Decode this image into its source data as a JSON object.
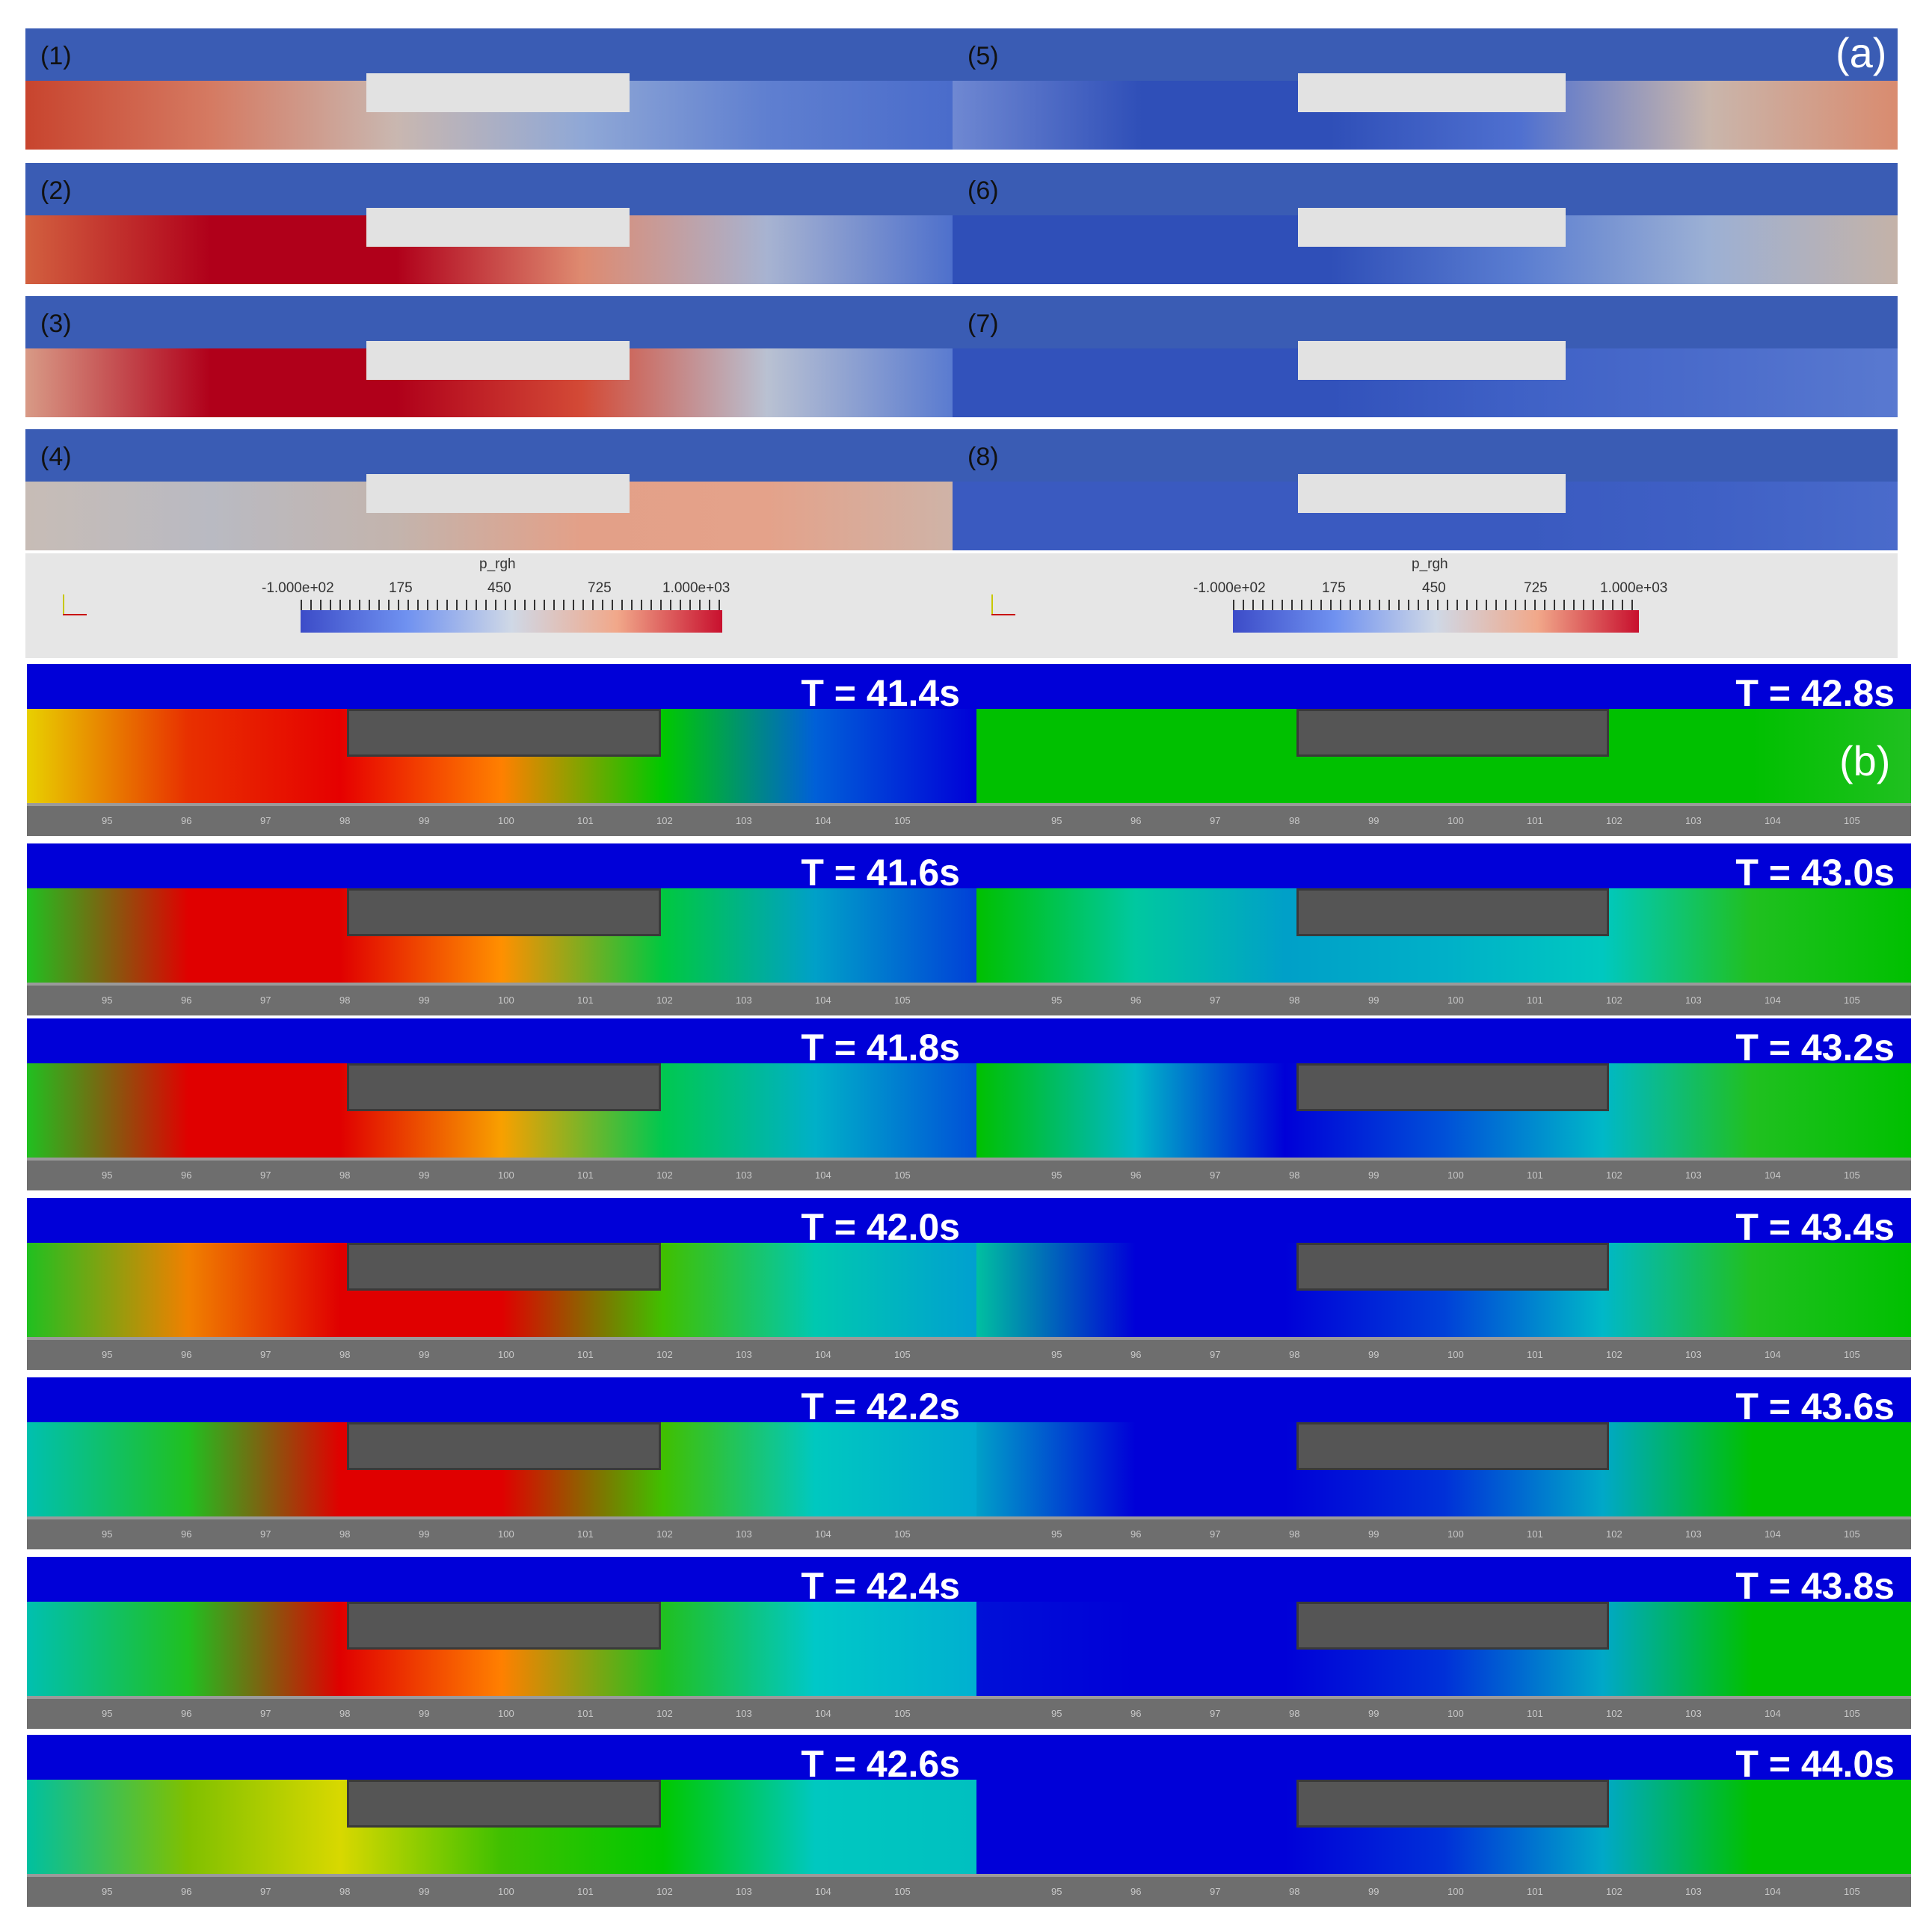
{
  "figure": {
    "part_a_tag": "(a)",
    "part_b_tag": "(b)"
  },
  "part_a": {
    "panels": [
      {
        "label": "(1)",
        "colors": [
          "#c8442e",
          "#d57a62",
          "#c9b7b0",
          "#90a8d6",
          "#5f7fd0",
          "#4a6ccb"
        ]
      },
      {
        "label": "(2)",
        "colors": [
          "#d2603f",
          "#b0001a",
          "#b0001a",
          "#de8a70",
          "#a7b3d1",
          "#4e70cc"
        ]
      },
      {
        "label": "(3)",
        "colors": [
          "#d89a86",
          "#b0001a",
          "#b0001a",
          "#d34a36",
          "#b9c1d2",
          "#5a7bd0"
        ]
      },
      {
        "label": "(4)",
        "colors": [
          "#c7bcb6",
          "#b9bac2",
          "#c3b4ad",
          "#e3a088",
          "#e4a28a",
          "#cfb3a7"
        ]
      },
      {
        "label": "(5)",
        "colors": [
          "#6f88d2",
          "#2f4fb8",
          "#2f4fb8",
          "#4f70d0",
          "#c9b6ac",
          "#d98b6f"
        ]
      },
      {
        "label": "(6)",
        "colors": [
          "#2f4fb8",
          "#2f4fb8",
          "#2f4fb8",
          "#5a7dd1",
          "#9cb0d4",
          "#c4b2a8"
        ]
      },
      {
        "label": "(7)",
        "colors": [
          "#3252bb",
          "#3252bb",
          "#3252bb",
          "#3f61c6",
          "#4b6ccb",
          "#5979d0"
        ]
      },
      {
        "label": "(8)",
        "colors": [
          "#3a5ac0",
          "#3a5ac0",
          "#3a5ac0",
          "#3a5ac0",
          "#3f60c5",
          "#4a6bcb"
        ]
      }
    ],
    "legend": {
      "title": "p_rgh",
      "ticks": [
        "-1.000e+02",
        "175",
        "450",
        "725",
        "1.000e+03"
      ]
    }
  },
  "part_b": {
    "axis_ticks": [
      "95",
      "96",
      "97",
      "98",
      "99",
      "100",
      "101",
      "102",
      "103",
      "104",
      "105"
    ],
    "panels": [
      {
        "time": "T = 41.4s",
        "colors": [
          "#e8d000",
          "#e83000",
          "#e60000",
          "#ff8000",
          "#00c800",
          "#0060d8",
          "#0000d8"
        ]
      },
      {
        "time": "T = 41.6s",
        "colors": [
          "#20c020",
          "#e00000",
          "#e00000",
          "#ff9000",
          "#00c840",
          "#00a0c8",
          "#0040d8"
        ]
      },
      {
        "time": "T = 41.8s",
        "colors": [
          "#20c020",
          "#e00000",
          "#e00000",
          "#f8a000",
          "#00c850",
          "#00b0c8",
          "#0050d8"
        ]
      },
      {
        "time": "T = 42.0s",
        "colors": [
          "#20c020",
          "#f08000",
          "#e00000",
          "#e00000",
          "#40c000",
          "#00c8b0",
          "#00a0d0"
        ]
      },
      {
        "time": "T = 42.2s",
        "colors": [
          "#00c0b0",
          "#20c020",
          "#e00000",
          "#e00000",
          "#40c000",
          "#00c8c0",
          "#00a8d0"
        ]
      },
      {
        "time": "T = 42.4s",
        "colors": [
          "#00c0b0",
          "#20c020",
          "#e00000",
          "#ff8000",
          "#20c020",
          "#00c8c8",
          "#00b0d0"
        ]
      },
      {
        "time": "T = 42.6s",
        "colors": [
          "#00c0a0",
          "#80c000",
          "#d8d800",
          "#40c000",
          "#00c800",
          "#00c8c0",
          "#00c0c0"
        ]
      },
      {
        "time": "T = 42.8s",
        "colors": [
          "#00c000",
          "#00c000",
          "#00c000",
          "#00c000",
          "#00c000",
          "#00c000",
          "#20c020"
        ]
      },
      {
        "time": "T = 43.0s",
        "colors": [
          "#00c000",
          "#00c8a0",
          "#00a0c8",
          "#00b0c8",
          "#00c8c0",
          "#20c020",
          "#00c000"
        ]
      },
      {
        "time": "T = 43.2s",
        "colors": [
          "#00c000",
          "#00b8c8",
          "#0000d8",
          "#0050d8",
          "#00b8c8",
          "#20c020",
          "#00c000"
        ]
      },
      {
        "time": "T = 43.4s",
        "colors": [
          "#00c0a0",
          "#0000d8",
          "#0000d8",
          "#0040d8",
          "#00b8c8",
          "#20c020",
          "#00c000"
        ]
      },
      {
        "time": "T = 43.6s",
        "colors": [
          "#00a0c8",
          "#0000d8",
          "#0000d8",
          "#0030d8",
          "#00a8c8",
          "#00c000",
          "#00c000"
        ]
      },
      {
        "time": "T = 43.8s",
        "colors": [
          "#0010d8",
          "#0000d8",
          "#0000d8",
          "#0030d8",
          "#00a8c8",
          "#00c000",
          "#00c000"
        ]
      },
      {
        "time": "T = 44.0s",
        "colors": [
          "#0000d8",
          "#0000d8",
          "#0000d8",
          "#0030d8",
          "#00a8c8",
          "#00c000",
          "#00c000"
        ]
      }
    ]
  }
}
